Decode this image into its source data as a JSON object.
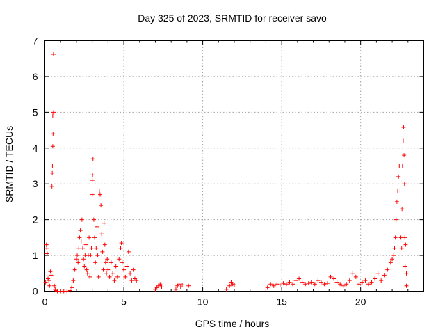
{
  "chart_data": {
    "type": "scatter",
    "title": "Day 325 of 2023, SRMTID for receiver savo",
    "xlabel": "GPS time / hours",
    "ylabel": "SRMTID / TECUs",
    "xlim": [
      0,
      24
    ],
    "ylim": [
      0,
      7
    ],
    "xticks": [
      0,
      5,
      10,
      15,
      20
    ],
    "yticks": [
      0,
      1,
      2,
      3,
      4,
      5,
      6,
      7
    ],
    "grid": true,
    "marker": "plus",
    "color": "#ff0000",
    "series": [
      {
        "name": "SRMTID",
        "points": [
          [
            0.05,
            0.25
          ],
          [
            0.1,
            1.3
          ],
          [
            0.12,
            1.2
          ],
          [
            0.15,
            1.05
          ],
          [
            0.2,
            0.35
          ],
          [
            0.25,
            0.3
          ],
          [
            0.3,
            0.15
          ],
          [
            0.35,
            0.55
          ],
          [
            0.4,
            0.45
          ],
          [
            0.45,
            2.93
          ],
          [
            0.47,
            3.3
          ],
          [
            0.48,
            3.5
          ],
          [
            0.5,
            4.05
          ],
          [
            0.52,
            4.4
          ],
          [
            0.5,
            4.9
          ],
          [
            0.55,
            5.0
          ],
          [
            0.55,
            6.62
          ],
          [
            0.6,
            0.15
          ],
          [
            0.65,
            0.05
          ],
          [
            0.7,
            0.02
          ],
          [
            0.8,
            0.0
          ],
          [
            1.0,
            0.0
          ],
          [
            1.2,
            0.0
          ],
          [
            1.4,
            0.0
          ],
          [
            1.6,
            0.02
          ],
          [
            1.7,
            0.1
          ],
          [
            1.8,
            0.3
          ],
          [
            1.9,
            0.6
          ],
          [
            2.0,
            0.9
          ],
          [
            2.05,
            1.0
          ],
          [
            2.1,
            0.8
          ],
          [
            2.15,
            1.2
          ],
          [
            2.2,
            1.5
          ],
          [
            2.25,
            1.7
          ],
          [
            2.3,
            1.4
          ],
          [
            2.35,
            2.0
          ],
          [
            2.4,
            1.2
          ],
          [
            2.45,
            0.9
          ],
          [
            2.5,
            0.7
          ],
          [
            2.55,
            1.0
          ],
          [
            2.6,
            1.3
          ],
          [
            2.65,
            0.6
          ],
          [
            2.7,
            0.5
          ],
          [
            2.75,
            1.0
          ],
          [
            2.8,
            1.5
          ],
          [
            2.85,
            0.4
          ],
          [
            2.9,
            1.0
          ],
          [
            2.95,
            1.2
          ],
          [
            3.0,
            2.7
          ],
          [
            3.0,
            3.1
          ],
          [
            3.02,
            3.25
          ],
          [
            3.05,
            3.7
          ],
          [
            3.1,
            2.0
          ],
          [
            3.15,
            1.5
          ],
          [
            3.2,
            0.8
          ],
          [
            3.25,
            1.2
          ],
          [
            3.3,
            1.8
          ],
          [
            3.35,
            1.0
          ],
          [
            3.4,
            0.4
          ],
          [
            3.45,
            2.8
          ],
          [
            3.5,
            2.7
          ],
          [
            3.55,
            2.4
          ],
          [
            3.6,
            1.6
          ],
          [
            3.65,
            1.1
          ],
          [
            3.7,
            0.6
          ],
          [
            3.75,
            1.9
          ],
          [
            3.8,
            1.3
          ],
          [
            3.85,
            0.8
          ],
          [
            3.9,
            0.5
          ],
          [
            3.95,
            0.9
          ],
          [
            4.0,
            0.6
          ],
          [
            4.1,
            0.4
          ],
          [
            4.2,
            0.8
          ],
          [
            4.3,
            0.5
          ],
          [
            4.4,
            0.3
          ],
          [
            4.5,
            0.7
          ],
          [
            4.6,
            0.4
          ],
          [
            4.7,
            0.9
          ],
          [
            4.8,
            1.2
          ],
          [
            4.85,
            1.35
          ],
          [
            4.9,
            0.8
          ],
          [
            5.0,
            0.6
          ],
          [
            5.1,
            0.4
          ],
          [
            5.2,
            0.7
          ],
          [
            5.3,
            1.1
          ],
          [
            5.4,
            0.5
          ],
          [
            5.5,
            0.3
          ],
          [
            5.6,
            0.6
          ],
          [
            5.7,
            0.35
          ],
          [
            5.8,
            0.3
          ],
          [
            7.0,
            0.05
          ],
          [
            7.1,
            0.1
          ],
          [
            7.2,
            0.15
          ],
          [
            7.3,
            0.2
          ],
          [
            7.4,
            0.12
          ],
          [
            8.3,
            0.05
          ],
          [
            8.4,
            0.15
          ],
          [
            8.5,
            0.2
          ],
          [
            8.6,
            0.12
          ],
          [
            8.7,
            0.18
          ],
          [
            9.1,
            0.15
          ],
          [
            11.5,
            0.05
          ],
          [
            11.7,
            0.15
          ],
          [
            11.8,
            0.25
          ],
          [
            11.9,
            0.2
          ],
          [
            12.0,
            0.18
          ],
          [
            14.1,
            0.1
          ],
          [
            14.3,
            0.2
          ],
          [
            14.5,
            0.15
          ],
          [
            14.7,
            0.2
          ],
          [
            14.9,
            0.18
          ],
          [
            15.1,
            0.22
          ],
          [
            15.3,
            0.2
          ],
          [
            15.5,
            0.25
          ],
          [
            15.7,
            0.2
          ],
          [
            15.9,
            0.3
          ],
          [
            16.1,
            0.35
          ],
          [
            16.3,
            0.25
          ],
          [
            16.5,
            0.2
          ],
          [
            16.7,
            0.22
          ],
          [
            16.9,
            0.25
          ],
          [
            17.1,
            0.2
          ],
          [
            17.3,
            0.3
          ],
          [
            17.5,
            0.25
          ],
          [
            17.7,
            0.2
          ],
          [
            17.9,
            0.22
          ],
          [
            18.1,
            0.4
          ],
          [
            18.3,
            0.35
          ],
          [
            18.5,
            0.25
          ],
          [
            18.7,
            0.2
          ],
          [
            18.9,
            0.15
          ],
          [
            19.1,
            0.2
          ],
          [
            19.3,
            0.3
          ],
          [
            19.5,
            0.5
          ],
          [
            19.7,
            0.4
          ],
          [
            19.9,
            0.2
          ],
          [
            20.1,
            0.25
          ],
          [
            20.3,
            0.3
          ],
          [
            20.5,
            0.2
          ],
          [
            20.7,
            0.25
          ],
          [
            20.9,
            0.35
          ],
          [
            21.1,
            0.5
          ],
          [
            21.3,
            0.3
          ],
          [
            21.5,
            0.45
          ],
          [
            21.7,
            0.6
          ],
          [
            21.9,
            0.8
          ],
          [
            22.0,
            0.9
          ],
          [
            22.1,
            1.0
          ],
          [
            22.15,
            1.2
          ],
          [
            22.2,
            1.5
          ],
          [
            22.25,
            2.0
          ],
          [
            22.3,
            2.5
          ],
          [
            22.35,
            2.8
          ],
          [
            22.4,
            3.2
          ],
          [
            22.45,
            3.5
          ],
          [
            22.5,
            2.8
          ],
          [
            22.55,
            1.5
          ],
          [
            22.6,
            1.2
          ],
          [
            22.62,
            2.3
          ],
          [
            22.65,
            3.5
          ],
          [
            22.7,
            4.2
          ],
          [
            22.72,
            4.58
          ],
          [
            22.75,
            3.8
          ],
          [
            22.78,
            3.0
          ],
          [
            22.8,
            1.5
          ],
          [
            22.82,
            0.7
          ],
          [
            22.85,
            1.3
          ],
          [
            22.9,
            0.15
          ],
          [
            22.9,
            0.5
          ]
        ]
      }
    ]
  }
}
